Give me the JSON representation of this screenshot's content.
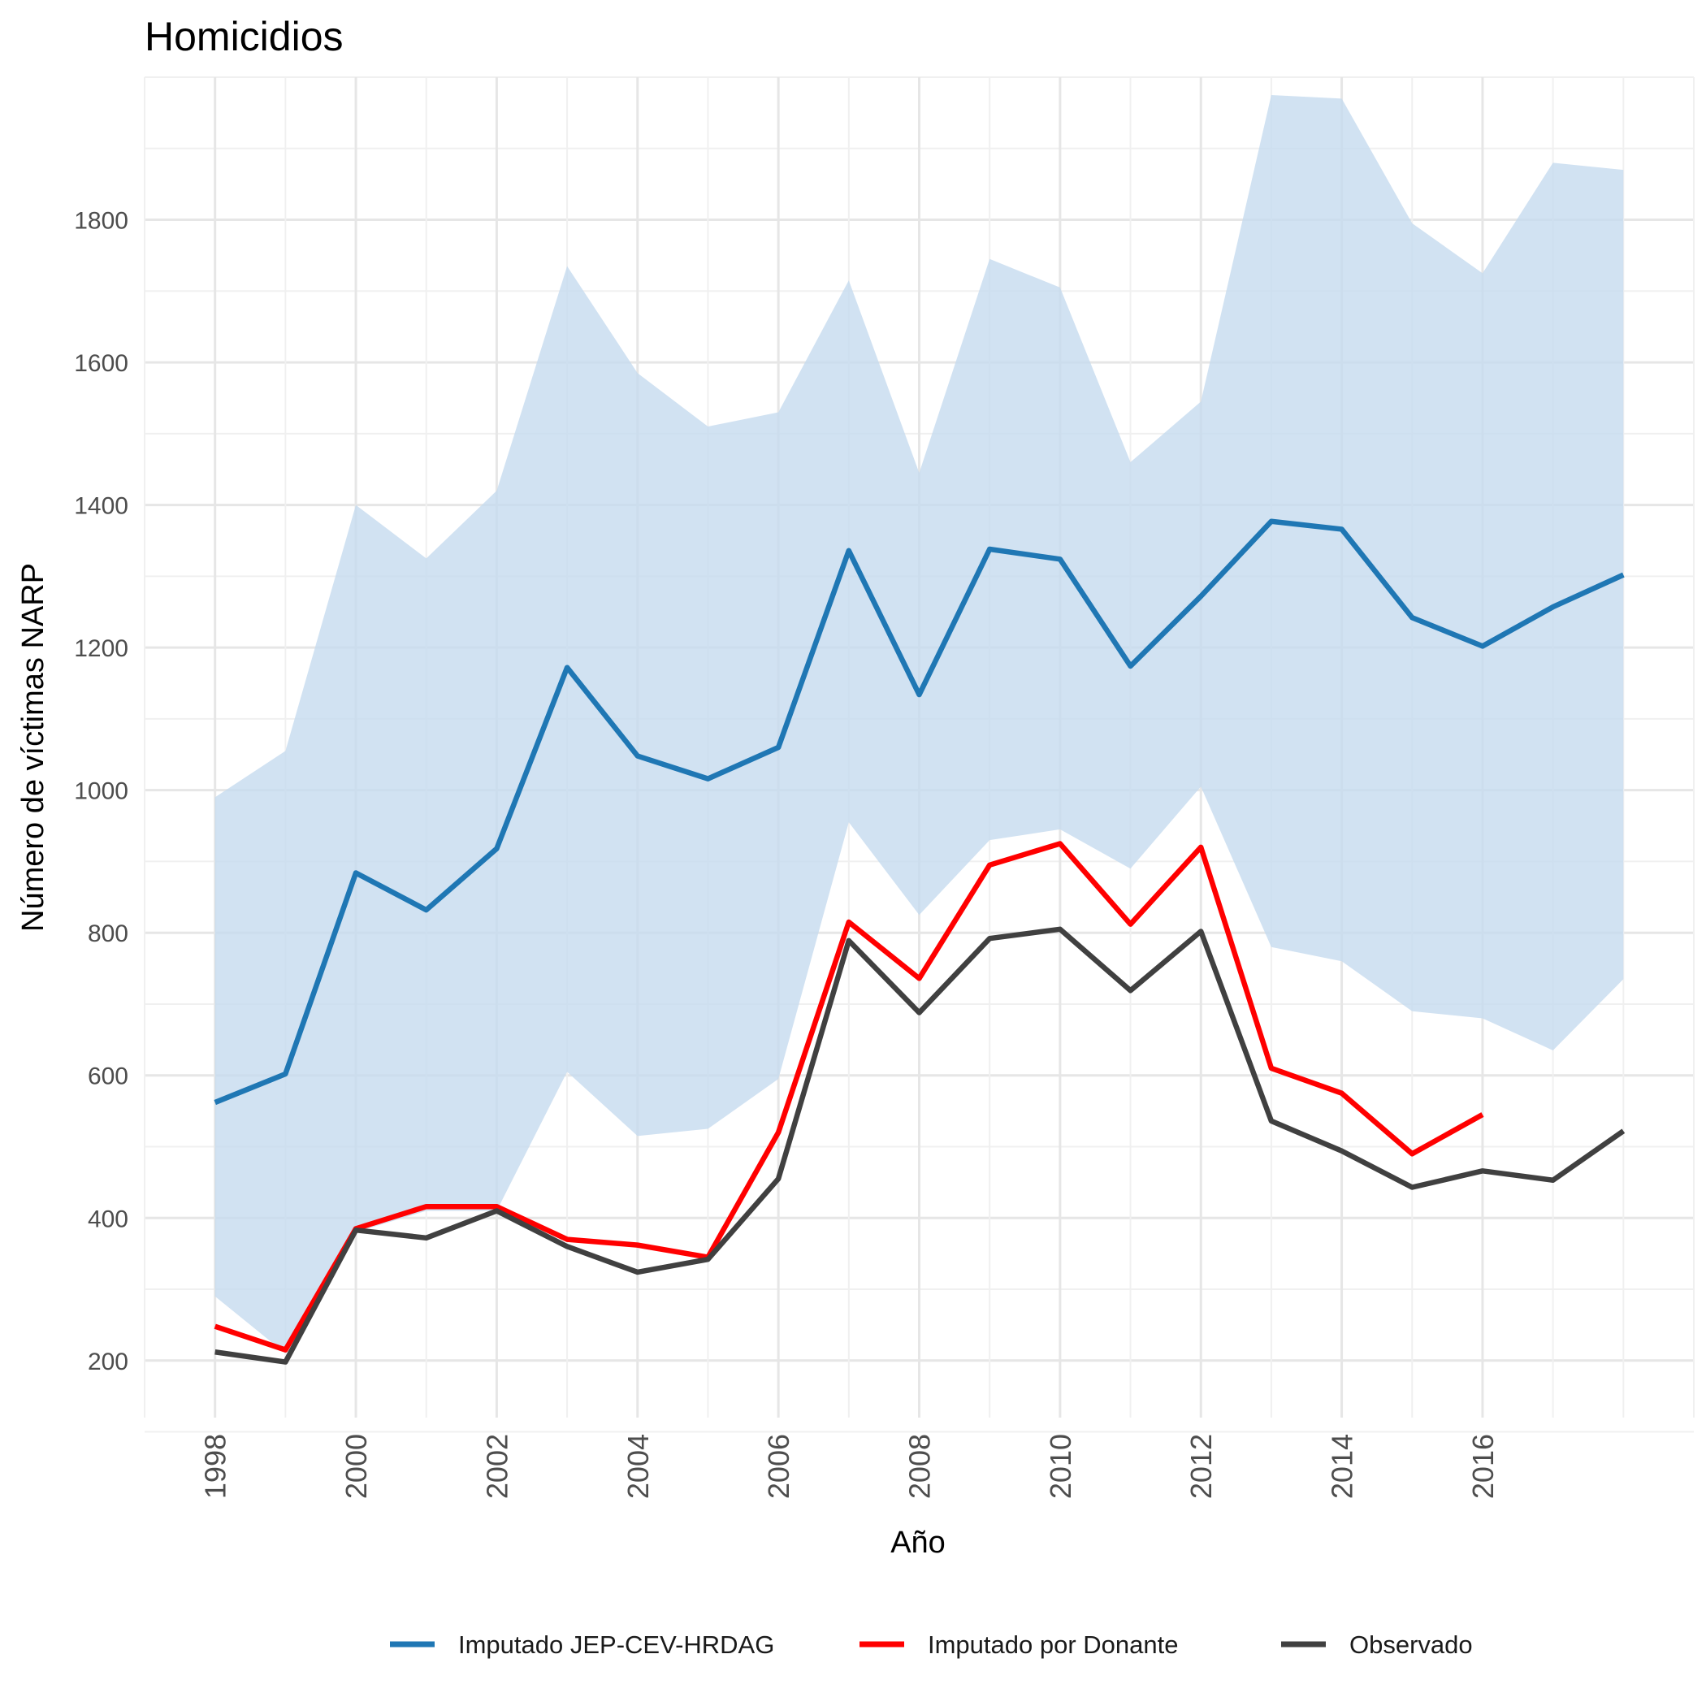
{
  "chart_data": {
    "type": "line",
    "title": "Homicidios",
    "xlabel": "Año",
    "ylabel": "Número de víctimas NARP",
    "x": [
      1998,
      1999,
      2000,
      2001,
      2002,
      2003,
      2004,
      2005,
      2006,
      2007,
      2008,
      2009,
      2010,
      2011,
      2012,
      2013,
      2014,
      2015,
      2016,
      2017,
      2018
    ],
    "xlim": [
      1997,
      2019
    ],
    "ylim": [
      120,
      2000
    ],
    "x_ticks": [
      "1998",
      "2000",
      "2002",
      "2004",
      "2006",
      "2008",
      "2010",
      "2012",
      "2014",
      "2016"
    ],
    "x_tick_values": [
      1998,
      2000,
      2002,
      2004,
      2006,
      2008,
      2010,
      2012,
      2014,
      2016
    ],
    "y_ticks": [
      "200",
      "400",
      "600",
      "800",
      "1000",
      "1200",
      "1400",
      "1600",
      "1800"
    ],
    "y_tick_values": [
      200,
      400,
      600,
      800,
      1000,
      1200,
      1400,
      1600,
      1800
    ],
    "grid": true,
    "legend_position": "bottom",
    "band": {
      "series": "Imputado JEP-CEV-HRDAG",
      "color": "#c6dbef",
      "lower": [
        290,
        210,
        380,
        410,
        410,
        605,
        515,
        525,
        595,
        955,
        825,
        930,
        945,
        890,
        1005,
        780,
        760,
        690,
        680,
        635,
        735
      ],
      "upper": [
        990,
        1055,
        1400,
        1325,
        1420,
        1735,
        1585,
        1510,
        1530,
        1715,
        1445,
        1745,
        1705,
        1460,
        1545,
        1975,
        1970,
        1795,
        1725,
        1880,
        1870
      ]
    },
    "series": [
      {
        "name": "Imputado JEP-CEV-HRDAG",
        "color": "#1f77b4",
        "values": [
          562,
          602,
          884,
          832,
          918,
          1172,
          1048,
          1016,
          1060,
          1336,
          1134,
          1338,
          1324,
          1174,
          1272,
          1377,
          1366,
          1242,
          1202,
          1257,
          1302
        ]
      },
      {
        "name": "Imputado por Donante",
        "color": "#ff0000",
        "values": [
          248,
          215,
          385,
          416,
          416,
          370,
          362,
          345,
          520,
          815,
          736,
          895,
          925,
          812,
          920,
          610,
          575,
          490,
          545,
          null,
          null
        ]
      },
      {
        "name": "Observado",
        "color": "#404040",
        "values": [
          212,
          198,
          383,
          372,
          410,
          360,
          324,
          342,
          455,
          789,
          688,
          792,
          805,
          719,
          802,
          536,
          494,
          443,
          466,
          453,
          522
        ]
      }
    ]
  }
}
